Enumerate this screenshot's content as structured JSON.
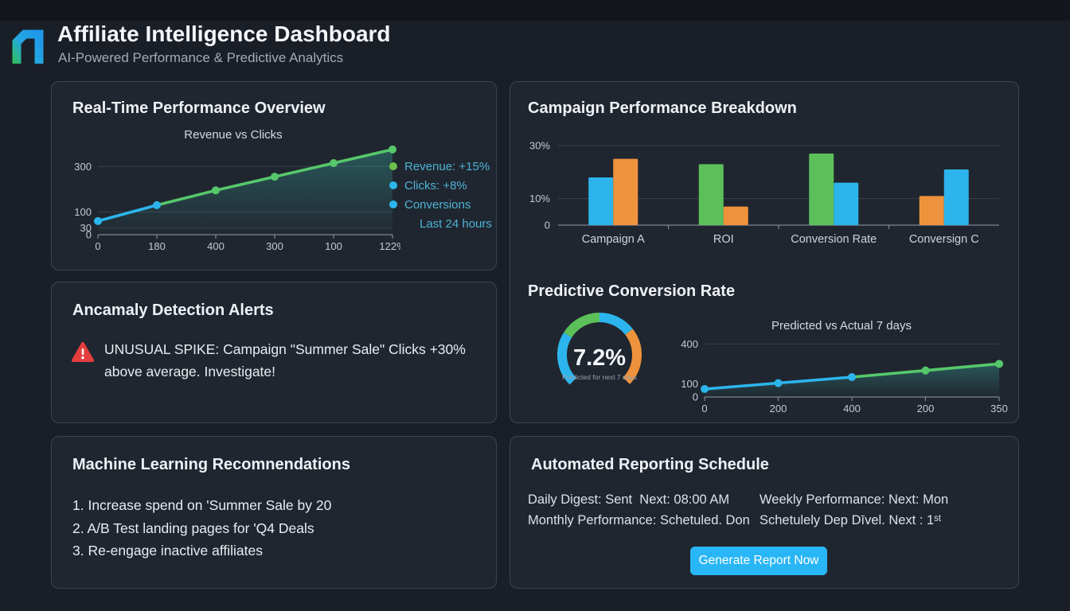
{
  "header": {
    "title": "Affiliate Intelligence Dashboard",
    "subtitle": "AI-Powered Performance & Predictive Analytics"
  },
  "colors": {
    "blue": "#2cb5ec",
    "green": "#5cc05a",
    "line_green": "#56c86b",
    "orange": "#ef923c",
    "legend_text": "#4db2d6",
    "alert_red": "#e53e3e",
    "button_blue": "#29b6f6"
  },
  "panels": {
    "realtime": {
      "title": "Real-Time Performance Overview",
      "legend": [
        {
          "label": "Revenue: +15%",
          "dot": "#6cc24a"
        },
        {
          "label": "Clicks: +8%",
          "dot": "#2cb5ec"
        },
        {
          "label": "Conversions",
          "dot": "#2cb5ec"
        },
        {
          "label": "Last 24 hours",
          "dot": null
        }
      ]
    },
    "breakdown": {
      "title": "Campaign Performance Breakdown"
    },
    "anomaly": {
      "title": "Ancamaly Detection Alerts",
      "alert_text": "UNUSUAL SPIKE: Campaign \"Summer Sale\" Clicks +30% above average. Investigate!"
    },
    "predictive": {
      "title": "Predictive Conversion Rate"
    },
    "ml": {
      "title": "Machine Learning Recomnendations",
      "items": [
        "1. Increase spend on 'Summer Sale by 20",
        "2. A/B Test landing pages for 'Q4 Deals",
        "3. Re-engage inactive affiliates"
      ]
    },
    "reporting": {
      "title": "Automated Reporting Schedule",
      "rows": {
        "daily": "Daily Digest: Sent  Next: 08:00 AM",
        "weekly": "Weekly Performance: Next: Mon",
        "monthly": "Monthly Performance: Schetuled. Don",
        "schedule": "Schetulely Dep Dīvel. Next : 1ˢᵗ"
      },
      "button_label": "Generate Report Now"
    }
  },
  "chart_data": [
    {
      "id": "revenue_vs_clicks",
      "type": "line",
      "title": "Revenue vs Clicks",
      "x_labels": [
        "0",
        "180",
        "400",
        "300",
        "100",
        "122%"
      ],
      "y_ticks": [
        {
          "label": "300",
          "value": 300,
          "grid": true
        },
        {
          "label": "100",
          "value": 100,
          "grid": true
        },
        {
          "label": "30",
          "value": 30,
          "grid": true
        },
        {
          "label": "0",
          "value": 0,
          "grid": false
        }
      ],
      "ylim": [
        0,
        385
      ],
      "points": [
        {
          "value": 60,
          "color": "#2cb5ec"
        },
        {
          "value": 130,
          "color": "#2cb5ec"
        },
        {
          "value": 195,
          "color": "#56c86b"
        },
        {
          "value": 255,
          "color": "#56c86b"
        },
        {
          "value": 315,
          "color": "#56c86b"
        },
        {
          "value": 375,
          "color": "#56c86b"
        }
      ],
      "legend_position": "right"
    },
    {
      "id": "campaign_breakdown",
      "type": "bar",
      "y_ticks": [
        {
          "label": "30%",
          "value": 30,
          "grid": true
        },
        {
          "label": "10%",
          "value": 10,
          "grid": true
        },
        {
          "label": "0",
          "value": 0,
          "grid": false
        }
      ],
      "ylim": [
        0,
        33
      ],
      "groups": [
        {
          "category": "Campaign A",
          "bars": [
            {
              "value": 18,
              "color": "#2cb5ec"
            },
            {
              "value": 25,
              "color": "#ef923c"
            }
          ]
        },
        {
          "category": "ROI",
          "bars": [
            {
              "value": 23,
              "color": "#5cc05a"
            },
            {
              "value": 7,
              "color": "#ef923c"
            }
          ]
        },
        {
          "category": "Conversion Rate",
          "bars": [
            {
              "value": 27,
              "color": "#5cc05a"
            },
            {
              "value": 16,
              "color": "#2cb5ec"
            }
          ]
        },
        {
          "category": "Conversign C",
          "bars": [
            {
              "value": 11,
              "color": "#ef923c"
            },
            {
              "value": 21,
              "color": "#2cb5ec"
            }
          ]
        }
      ]
    },
    {
      "id": "predicted_gauge",
      "type": "gauge",
      "value": 7.2,
      "value_label": "7.2%",
      "caption": "Predicted for next 7 days",
      "segments": [
        {
          "color": "#2cb5ec",
          "start": 225,
          "end": 302
        },
        {
          "color": "#5cc05a",
          "start": 302,
          "end": 360
        },
        {
          "color": "#2cb5ec",
          "start": 360,
          "end": 412
        },
        {
          "color": "#ef923c",
          "start": 412,
          "end": 494
        }
      ]
    },
    {
      "id": "predicted_vs_actual",
      "type": "line",
      "title": "Predicted vs Actual 7 days",
      "x_labels": [
        "0",
        "200",
        "400",
        "200",
        "350"
      ],
      "y_ticks": [
        {
          "label": "400",
          "value": 400,
          "grid": true
        },
        {
          "label": "100",
          "value": 100,
          "grid": false
        },
        {
          "label": "0",
          "value": 0,
          "grid": false
        }
      ],
      "ylim": [
        0,
        420
      ],
      "points": [
        {
          "value": 60,
          "color": "#2cb5ec"
        },
        {
          "value": 105,
          "color": "#2cb5ec"
        },
        {
          "value": 150,
          "color": "#2cb5ec"
        },
        {
          "value": 200,
          "color": "#56c86b"
        },
        {
          "value": 250,
          "color": "#56c86b"
        }
      ]
    }
  ]
}
